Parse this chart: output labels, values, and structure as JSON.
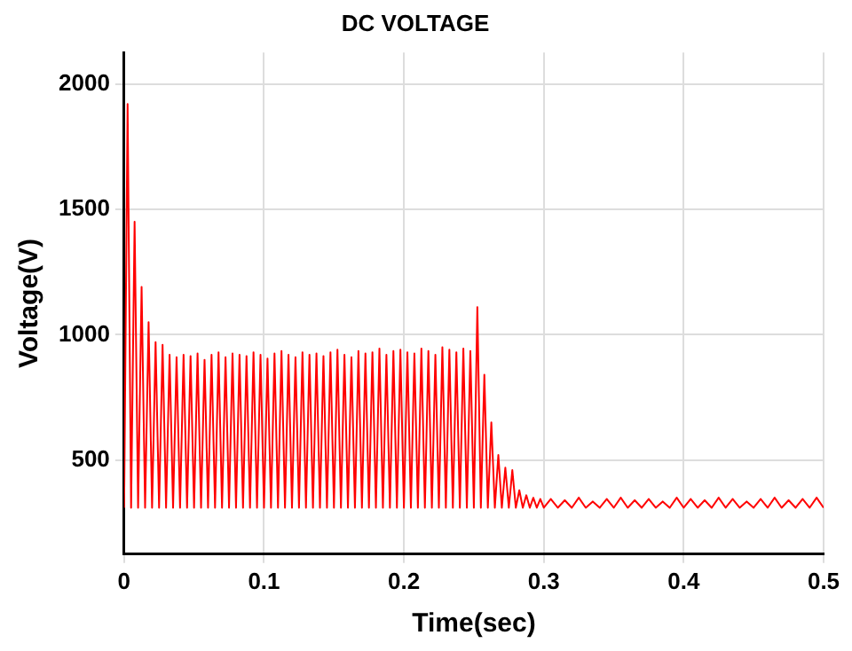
{
  "chart_data": {
    "type": "line",
    "title": "DC VOLTAGE",
    "xlabel": "Time(sec)",
    "ylabel": "Voltage(V)",
    "xlim": [
      0,
      0.5
    ],
    "xticks": [
      0,
      0.1,
      0.2,
      0.3,
      0.4,
      0.5
    ],
    "ylim": [
      125,
      2125
    ],
    "yticks": [
      500,
      1000,
      1500,
      2000
    ],
    "grid": true,
    "legend": false,
    "marker": "none",
    "line_style": "solid",
    "x": [
      0,
      0.0025,
      0.005,
      0.0075,
      0.01,
      0.0125,
      0.015,
      0.0175,
      0.02,
      0.0225,
      0.025,
      0.0275,
      0.03,
      0.0325,
      0.035,
      0.0375,
      0.04,
      0.0425,
      0.045,
      0.0475,
      0.05,
      0.0525,
      0.055,
      0.0575,
      0.06,
      0.0625,
      0.065,
      0.0675,
      0.07,
      0.0725,
      0.075,
      0.0775,
      0.08,
      0.0825,
      0.085,
      0.0875,
      0.09,
      0.0925,
      0.095,
      0.0975,
      0.1,
      0.1025,
      0.105,
      0.1075,
      0.11,
      0.1125,
      0.115,
      0.1175,
      0.12,
      0.1225,
      0.125,
      0.1275,
      0.13,
      0.1325,
      0.135,
      0.1375,
      0.14,
      0.1425,
      0.145,
      0.1475,
      0.15,
      0.1525,
      0.155,
      0.1575,
      0.16,
      0.1625,
      0.165,
      0.1675,
      0.17,
      0.1725,
      0.175,
      0.1775,
      0.18,
      0.1825,
      0.185,
      0.1875,
      0.19,
      0.1925,
      0.195,
      0.1975,
      0.2,
      0.2025,
      0.205,
      0.2075,
      0.21,
      0.2125,
      0.215,
      0.2175,
      0.22,
      0.2225,
      0.225,
      0.2275,
      0.23,
      0.2325,
      0.235,
      0.2375,
      0.24,
      0.2425,
      0.245,
      0.2475,
      0.25,
      0.2525,
      0.255,
      0.2575,
      0.26,
      0.2625,
      0.265,
      0.2675,
      0.27,
      0.2725,
      0.275,
      0.2775,
      0.28,
      0.2825,
      0.285,
      0.2875,
      0.29,
      0.2925,
      0.295,
      0.2975,
      0.3,
      0.305,
      0.31,
      0.315,
      0.32,
      0.325,
      0.33,
      0.335,
      0.34,
      0.345,
      0.35,
      0.355,
      0.36,
      0.365,
      0.37,
      0.375,
      0.38,
      0.385,
      0.39,
      0.395,
      0.4,
      0.405,
      0.41,
      0.415,
      0.42,
      0.425,
      0.43,
      0.435,
      0.44,
      0.445,
      0.45,
      0.455,
      0.46,
      0.465,
      0.47,
      0.475,
      0.48,
      0.485,
      0.49,
      0.495,
      0.5
    ],
    "series": [
      {
        "color": "#ff0000",
        "values": [
          310,
          1920,
          310,
          1450,
          310,
          1190,
          310,
          1050,
          310,
          970,
          310,
          960,
          310,
          920,
          310,
          910,
          310,
          920,
          310,
          915,
          310,
          925,
          310,
          900,
          310,
          920,
          310,
          930,
          310,
          910,
          310,
          925,
          310,
          920,
          310,
          915,
          310,
          930,
          310,
          920,
          310,
          905,
          310,
          925,
          310,
          935,
          310,
          920,
          310,
          910,
          310,
          930,
          310,
          920,
          310,
          925,
          310,
          915,
          310,
          930,
          310,
          940,
          310,
          920,
          310,
          910,
          310,
          935,
          310,
          925,
          310,
          930,
          310,
          945,
          310,
          920,
          310,
          935,
          310,
          940,
          310,
          930,
          310,
          925,
          310,
          945,
          310,
          935,
          310,
          920,
          310,
          950,
          310,
          940,
          310,
          930,
          310,
          945,
          310,
          935,
          310,
          1110,
          310,
          840,
          310,
          650,
          310,
          520,
          310,
          470,
          310,
          460,
          310,
          380,
          310,
          360,
          310,
          350,
          310,
          345,
          310,
          345,
          310,
          340,
          310,
          350,
          310,
          335,
          310,
          345,
          310,
          350,
          310,
          340,
          310,
          345,
          310,
          335,
          310,
          350,
          310,
          345,
          310,
          340,
          310,
          350,
          310,
          345,
          310,
          335,
          310,
          345,
          310,
          350,
          310,
          340,
          310,
          345,
          310,
          350,
          310
        ]
      }
    ]
  }
}
